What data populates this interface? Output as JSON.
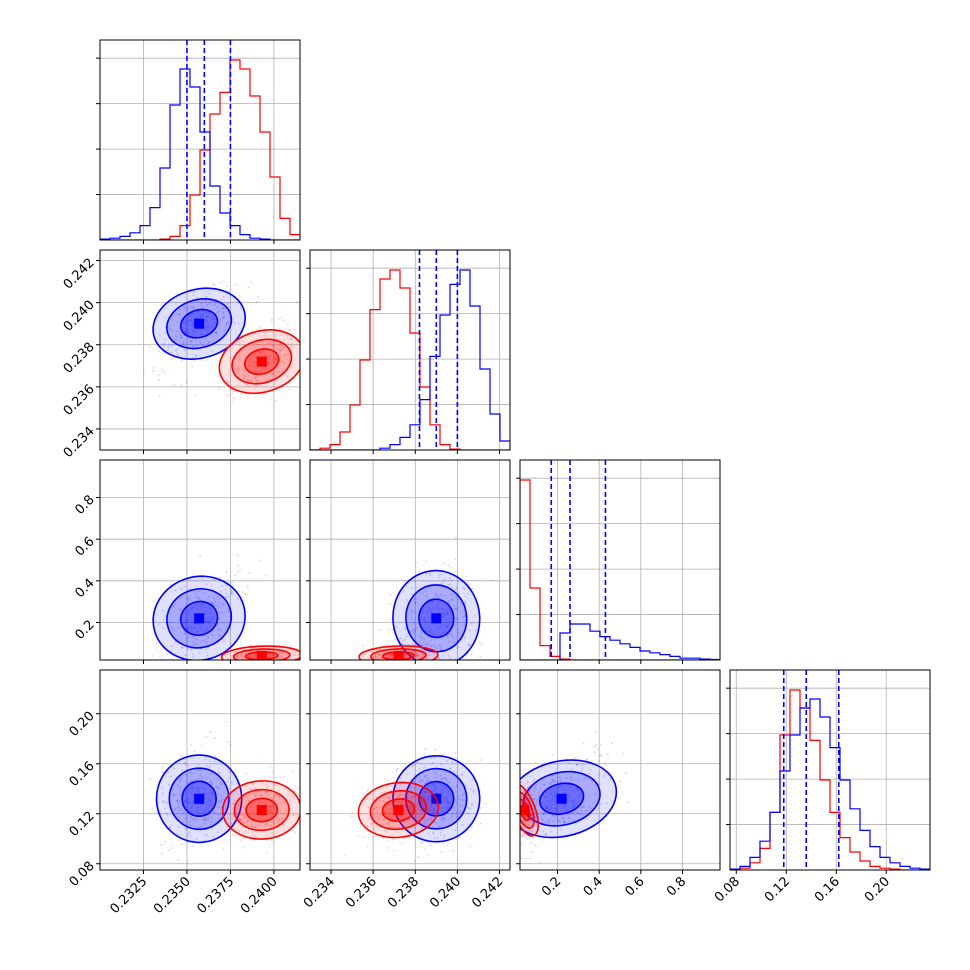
{
  "chart_data": {
    "type": "corner",
    "grid": true,
    "colors": {
      "series_a": "#0000ff",
      "series_b": "#ff0000"
    },
    "series": [
      {
        "color": "blue",
        "means": [
          0.2357,
          0.239,
          0.22,
          0.132
        ],
        "stds": [
          0.0012,
          0.001,
          0.12,
          0.018
        ],
        "quantiles": [
          [
            0.235,
            0.236,
            0.2375
          ],
          [
            0.2382,
            0.239,
            0.24
          ],
          [
            0.17,
            0.26,
            0.43
          ],
          [
            0.118,
            0.136,
            0.162
          ]
        ]
      },
      {
        "color": "red",
        "means": [
          0.2393,
          0.2372,
          0.04,
          0.123
        ],
        "stds": [
          0.0011,
          0.0009,
          0.025,
          0.012
        ],
        "quantiles": null
      }
    ],
    "params": [
      {
        "range": [
          0.23,
          0.2415
        ],
        "ticks": [
          "0.2325",
          "0.2350",
          "0.2375",
          "0.2400"
        ]
      },
      {
        "range": [
          0.233,
          0.2425
        ],
        "ticks": [
          "0.234",
          "0.236",
          "0.238",
          "0.240",
          "0.242"
        ]
      },
      {
        "range": [
          0.02,
          0.98
        ],
        "ticks": [
          "0.2",
          "0.4",
          "0.6",
          "0.8"
        ]
      },
      {
        "range": [
          0.075,
          0.235
        ],
        "ticks": [
          "0.08",
          "0.12",
          "0.16",
          "0.20"
        ]
      }
    ],
    "histograms": {
      "0": {
        "blue": [
          0.5,
          1,
          2,
          4,
          8,
          18,
          40,
          75,
          95,
          85,
          60,
          30,
          15,
          8,
          3,
          1,
          0.5,
          0,
          0,
          0
        ],
        "red": [
          0,
          0,
          0,
          0,
          0,
          0,
          0.5,
          2,
          8,
          25,
          50,
          70,
          82,
          100,
          95,
          80,
          60,
          35,
          12,
          3
        ]
      },
      "1": {
        "blue": [
          0,
          0,
          0,
          0,
          0,
          0,
          0,
          1,
          3,
          7,
          14,
          28,
          52,
          75,
          92,
          100,
          80,
          45,
          20,
          5
        ],
        "red": [
          0,
          1,
          3,
          10,
          25,
          50,
          78,
          95,
          100,
          90,
          65,
          35,
          14,
          3,
          0.5,
          0,
          0,
          0,
          0,
          0
        ]
      },
      "2": {
        "blue": [
          0,
          0,
          0,
          0,
          15,
          20,
          20,
          16,
          13,
          11,
          9,
          7,
          5,
          4,
          3,
          2,
          1,
          1,
          0.5,
          0.3
        ],
        "red": [
          100,
          40,
          8,
          2,
          0.5,
          0,
          0,
          0,
          0,
          0,
          0,
          0,
          0,
          0,
          0,
          0,
          0,
          0,
          0,
          0
        ]
      },
      "3": {
        "blue": [
          0.5,
          2,
          7,
          16,
          32,
          55,
          75,
          90,
          95,
          85,
          68,
          50,
          34,
          22,
          13,
          7,
          4,
          2,
          1,
          0.5
        ],
        "red": [
          0,
          1,
          4,
          12,
          32,
          75,
          100,
          90,
          72,
          50,
          32,
          18,
          10,
          5,
          2,
          1,
          0.5,
          0,
          0,
          0
        ]
      }
    }
  }
}
